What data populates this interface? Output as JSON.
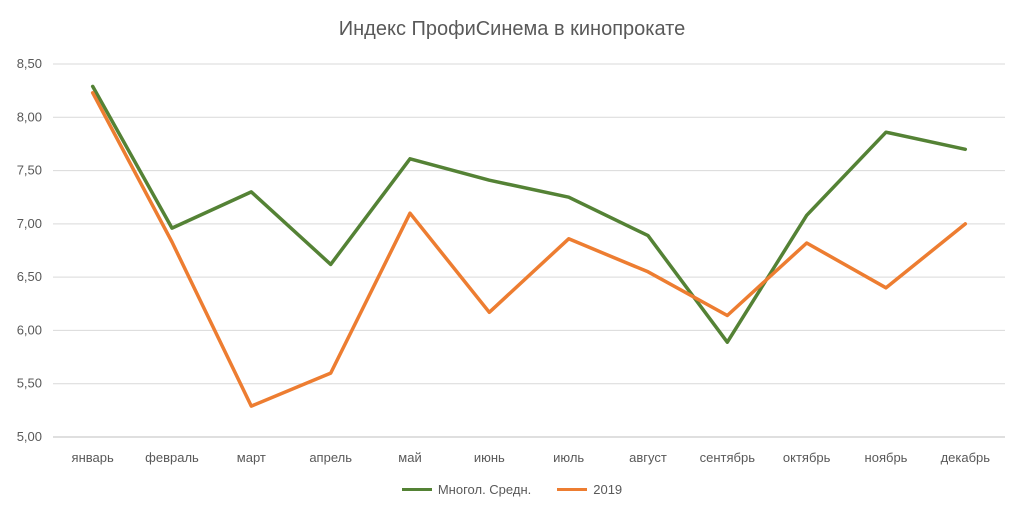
{
  "chart_data": {
    "type": "line",
    "title": "Индекс ПрофиСинема в кинопрокате",
    "xlabel": "",
    "ylabel": "",
    "categories": [
      "январь",
      "февраль",
      "март",
      "апрель",
      "май",
      "июнь",
      "июль",
      "август",
      "сентябрь",
      "октябрь",
      "ноябрь",
      "декабрь"
    ],
    "ylim": [
      5.0,
      8.5
    ],
    "yticks": [
      "5,00",
      "5,50",
      "6,00",
      "6,50",
      "7,00",
      "7,50",
      "8,00",
      "8,50"
    ],
    "yticks_values": [
      5.0,
      5.5,
      6.0,
      6.5,
      7.0,
      7.5,
      8.0,
      8.5
    ],
    "grid": "horizontal",
    "legend_position": "bottom",
    "series": [
      {
        "name": "Многол. Средн.",
        "color": "#548235",
        "values": [
          8.29,
          6.96,
          7.3,
          6.62,
          7.61,
          7.41,
          7.25,
          6.89,
          5.89,
          7.08,
          7.86,
          7.7
        ]
      },
      {
        "name": "2019",
        "color": "#ED7D31",
        "values": [
          8.23,
          6.83,
          5.29,
          5.6,
          7.1,
          6.17,
          6.86,
          6.55,
          6.14,
          6.82,
          6.4,
          7.0
        ]
      }
    ]
  }
}
